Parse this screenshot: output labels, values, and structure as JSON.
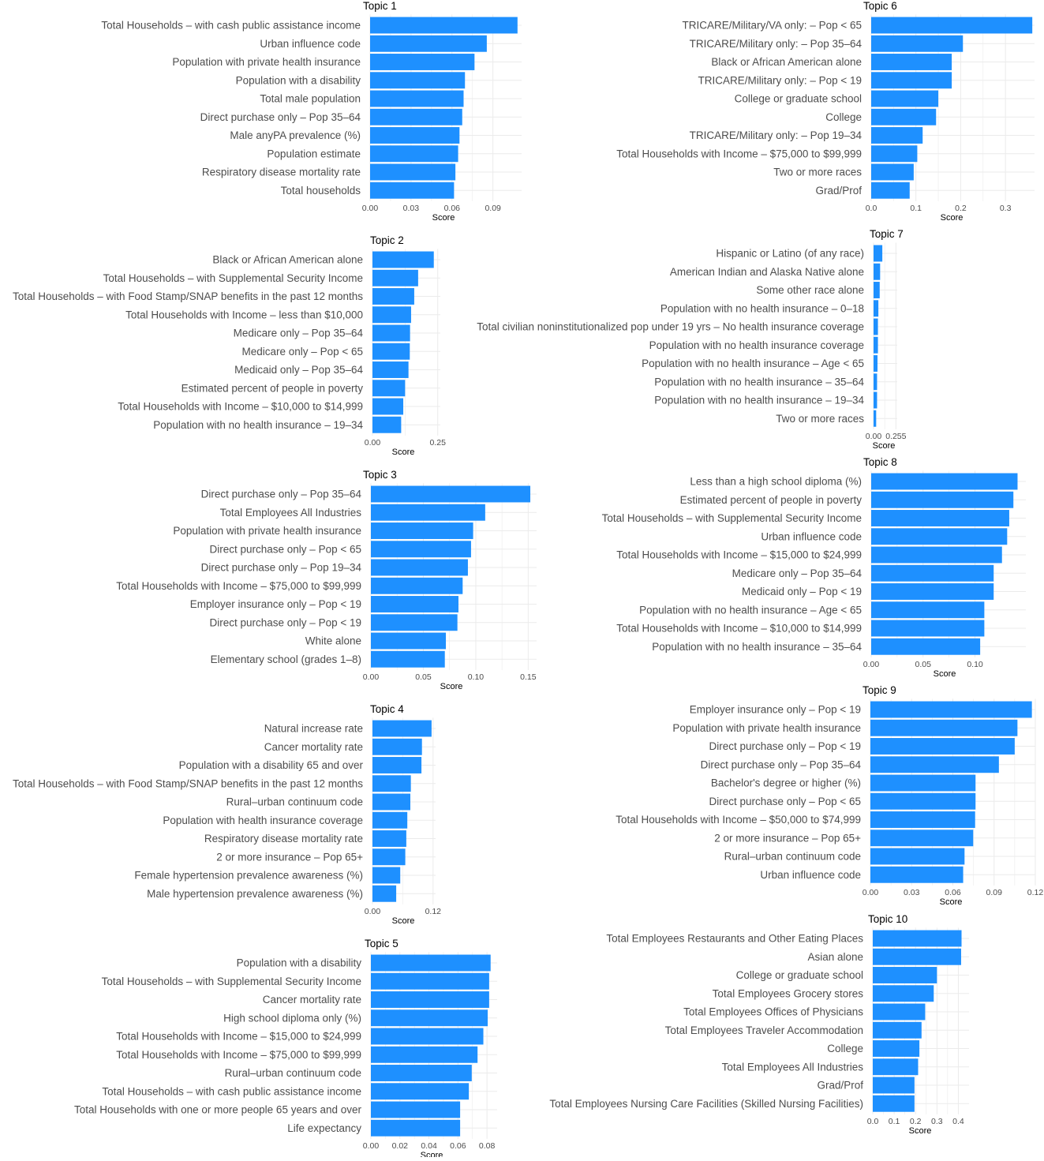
{
  "colors": {
    "bar": "#1E90FF",
    "grid": "#EBEBEB",
    "text": "#1A1A1A",
    "tick": "#4D4D4D"
  },
  "chart_data": [
    {
      "type": "bar",
      "orientation": "horizontal",
      "title": "Topic 1",
      "xlabel": "Score",
      "ylabel": "",
      "xlim": [
        0,
        0.111
      ],
      "xticks": [
        0.0,
        0.03,
        0.06,
        0.09
      ],
      "tick_labels": [
        "0.00",
        "0.03",
        "0.06",
        "0.09"
      ],
      "grid": true,
      "categories": [
        "Total Households – with cash public assistance income",
        "Urban influence code",
        "Population with private health insurance",
        "Population with a disability",
        "Total male population",
        "Direct purchase only – Pop 35–64",
        "Male anyPA prevalence (%)",
        "Population estimate",
        "Respiratory disease mortality rate",
        "Total households"
      ],
      "values": [
        0.108,
        0.0855,
        0.0765,
        0.0695,
        0.0685,
        0.0675,
        0.0655,
        0.0645,
        0.0625,
        0.0615
      ]
    },
    {
      "type": "bar",
      "orientation": "horizontal",
      "title": "Topic 2",
      "xlabel": "Score",
      "ylabel": "",
      "xlim": [
        0,
        0.26
      ],
      "xticks": [
        0.0,
        0.25
      ],
      "tick_labels": [
        "0.00",
        "0.25"
      ],
      "grid": true,
      "categories": [
        "Black or African American alone",
        "Total Households – with Supplemental Security Income",
        "Total Households – with Food Stamp/SNAP benefits in the past 12 months",
        "Total Households with Income – less than $10,000",
        "Medicare only – Pop 35–64",
        "Medicare only – Pop < 65",
        "Medicaid only – Pop 35–64",
        "Estimated percent of people in poverty",
        "Total Households with Income – $10,000 to $14,999",
        "Population with no health insurance – 19–34"
      ],
      "values": [
        0.235,
        0.175,
        0.16,
        0.148,
        0.144,
        0.143,
        0.138,
        0.125,
        0.118,
        0.11
      ]
    },
    {
      "type": "bar",
      "orientation": "horizontal",
      "title": "Topic 3",
      "xlabel": "Score",
      "ylabel": "",
      "xlim": [
        0,
        0.158
      ],
      "xticks": [
        0.0,
        0.05,
        0.1,
        0.15
      ],
      "tick_labels": [
        "0.00",
        "0.05",
        "0.10",
        "0.15"
      ],
      "grid": true,
      "categories": [
        "Direct purchase only – Pop 35–64",
        "Total Employees All Industries",
        "Population with private health insurance",
        "Direct purchase only – Pop < 65",
        "Direct purchase only – Pop 19–34",
        "Total Households with Income – $75,000 to $99,999",
        "Employer insurance only – Pop < 19",
        "Direct purchase only – Pop < 19",
        "White alone",
        "Elementary school (grades 1–8)"
      ],
      "values": [
        0.152,
        0.109,
        0.0975,
        0.0955,
        0.0925,
        0.0875,
        0.0835,
        0.0825,
        0.0715,
        0.0705
      ]
    },
    {
      "type": "bar",
      "orientation": "horizontal",
      "title": "Topic 4",
      "xlabel": "Score",
      "ylabel": "",
      "xlim": [
        0,
        0.125
      ],
      "xticks": [
        0.0,
        0.12
      ],
      "tick_labels": [
        "0.00",
        "0.12"
      ],
      "grid": true,
      "categories": [
        "Natural increase rate",
        "Cancer mortality rate",
        "Population with a disability 65 and over",
        "Total Households – with Food Stamp/SNAP benefits in the past 12 months",
        "Rural–urban continuum code",
        "Population with health insurance coverage",
        "Respiratory disease mortality rate",
        "2 or more insurance – Pop 65+",
        "Female hypertension prevalence awareness (%)",
        "Male hypertension prevalence awareness (%)"
      ],
      "values": [
        0.117,
        0.098,
        0.097,
        0.076,
        0.075,
        0.069,
        0.067,
        0.065,
        0.055,
        0.047
      ]
    },
    {
      "type": "bar",
      "orientation": "horizontal",
      "title": "Topic 5",
      "xlabel": "Score",
      "ylabel": "",
      "xlim": [
        0,
        0.087
      ],
      "xticks": [
        0.0,
        0.02,
        0.04,
        0.06,
        0.08
      ],
      "tick_labels": [
        "0.00",
        "0.02",
        "0.04",
        "0.06",
        "0.08"
      ],
      "grid": true,
      "categories": [
        "Population with a disability",
        "Total Households – with Supplemental Security Income",
        "Cancer mortality rate",
        "High school diploma only (%)",
        "Total Households with Income – $15,000 to $24,999",
        "Total Households with Income – $75,000 to $99,999",
        "Rural–urban continuum code",
        "Total Households – with cash public assistance income",
        "Total Households with one or more people 65 years and over",
        "Life expectancy"
      ],
      "values": [
        0.0825,
        0.0815,
        0.0815,
        0.0805,
        0.0775,
        0.0735,
        0.0695,
        0.0675,
        0.0615,
        0.0615
      ]
    },
    {
      "type": "bar",
      "orientation": "horizontal",
      "title": "Topic 6",
      "xlabel": "Score",
      "ylabel": "",
      "xlim": [
        0,
        0.365
      ],
      "xticks": [
        0.0,
        0.1,
        0.2,
        0.3
      ],
      "tick_labels": [
        "0.0",
        "0.1",
        "0.2",
        "0.3"
      ],
      "grid": true,
      "categories": [
        "TRICARE/Military/VA only: – Pop < 65",
        "TRICARE/Military only: – Pop 35–64",
        "Black or African American alone",
        "TRICARE/Military only: – Pop < 19",
        "College or graduate school",
        "College",
        "TRICARE/Military only: – Pop 19–34",
        "Total Households with Income – $75,000 to $99,999",
        "Two or more races",
        "Grad/Prof"
      ],
      "values": [
        0.36,
        0.205,
        0.18,
        0.18,
        0.15,
        0.145,
        0.115,
        0.103,
        0.095,
        0.086
      ]
    },
    {
      "type": "bar",
      "orientation": "horizontal",
      "title": "Topic 7",
      "xlabel": "Score",
      "ylabel": "",
      "xlim": [
        0,
        0.27
      ],
      "xticks": [
        0.0,
        0.255
      ],
      "tick_labels": [
        "0.00",
        "0.255"
      ],
      "grid": true,
      "categories": [
        "Hispanic or Latino (of any race)",
        "American Indian and Alaska Native alone",
        "Some other race alone",
        "Population with no health insurance – 0–18",
        "Total civilian noninstitutionalized pop under 19 yrs – No health insurance coverage",
        "Population with no health insurance coverage",
        "Population with no health insurance – Age < 65",
        "Population with no health insurance – 35–64",
        "Population with no health insurance – 19–34",
        "Two or more races"
      ],
      "values": [
        0.1,
        0.075,
        0.07,
        0.055,
        0.05,
        0.05,
        0.045,
        0.04,
        0.04,
        0.03
      ]
    },
    {
      "type": "bar",
      "orientation": "horizontal",
      "title": "Topic 8",
      "xlabel": "Score",
      "ylabel": "",
      "xlim": [
        0,
        0.149
      ],
      "xticks": [
        0.0,
        0.05,
        0.1
      ],
      "tick_labels": [
        "0.00",
        "0.05",
        "0.10"
      ],
      "grid": true,
      "categories": [
        "Less than a high school diploma (%)",
        "Estimated percent of people in poverty",
        "Total Households – with Supplemental Security Income",
        "Urban influence code",
        "Total Households with Income – $15,000 to $24,999",
        "Medicare only – Pop 35–64",
        "Medicaid only – Pop < 19",
        "Population with no health insurance – Age < 65",
        "Total Households with Income – $10,000 to $14,999",
        "Population with no health insurance – 35–64"
      ],
      "values": [
        0.141,
        0.137,
        0.133,
        0.131,
        0.126,
        0.118,
        0.118,
        0.109,
        0.109,
        0.105
      ]
    },
    {
      "type": "bar",
      "orientation": "horizontal",
      "title": "Topic 9",
      "xlabel": "Score",
      "ylabel": "",
      "xlim": [
        0,
        0.12
      ],
      "xticks": [
        0.0,
        0.03,
        0.06,
        0.09,
        0.12
      ],
      "tick_labels": [
        "0.00",
        "0.03",
        "0.06",
        "0.09",
        "0.12"
      ],
      "grid": true,
      "categories": [
        "Employer insurance only – Pop < 19",
        "Population with private health insurance",
        "Direct purchase only – Pop < 19",
        "Direct purchase only – Pop 35–64",
        "Bachelor's degree or higher (%)",
        "Direct purchase only – Pop < 65",
        "Total Households with Income – $50,000 to $74,999",
        "2 or more insurance – Pop 65+",
        "Rural–urban continuum code",
        "Urban influence code"
      ],
      "values": [
        0.1175,
        0.107,
        0.105,
        0.0935,
        0.0765,
        0.0765,
        0.0762,
        0.0748,
        0.0685,
        0.0675
      ]
    },
    {
      "type": "bar",
      "orientation": "horizontal",
      "title": "Topic 10",
      "xlabel": "Score",
      "ylabel": "",
      "xlim": [
        0,
        0.45
      ],
      "xticks": [
        0.0,
        0.1,
        0.2,
        0.3,
        0.4
      ],
      "tick_labels": [
        "0.0",
        "0.1",
        "0.2",
        "0.3",
        "0.4"
      ],
      "grid": true,
      "categories": [
        "Total Employees Restaurants and Other Eating Places",
        "Asian alone",
        "College or graduate school",
        "Total Employees Grocery stores",
        "Total Employees Offices of Physicians",
        "Total Employees Traveler Accommodation",
        "College",
        "Total Employees All Industries",
        "Grad/Prof",
        "Total Employees Nursing Care Facilities (Skilled Nursing Facilities)"
      ],
      "values": [
        0.415,
        0.413,
        0.3,
        0.285,
        0.245,
        0.228,
        0.218,
        0.212,
        0.195,
        0.195
      ]
    }
  ]
}
